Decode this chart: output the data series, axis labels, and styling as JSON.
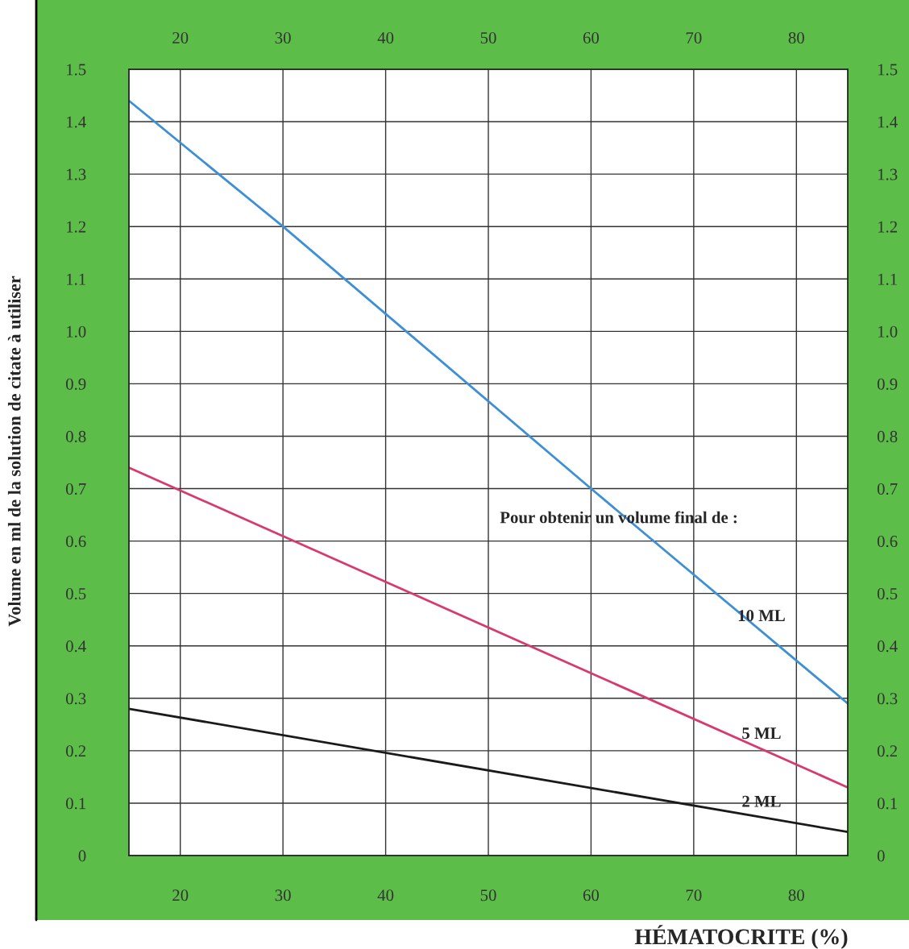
{
  "chart_data": {
    "type": "line",
    "xlabel": "HÉMATOCRITE (%)",
    "ylabel": "Volume en ml de la solution de citate à utiliser",
    "annotations": [
      "Pour obtenir un volume final de :"
    ],
    "xlim": [
      15,
      85
    ],
    "xticks": [
      20,
      30,
      40,
      50,
      60,
      70,
      80
    ],
    "x2lim": [
      15,
      85
    ],
    "x2ticks": [
      20,
      30,
      40,
      50,
      60,
      70,
      80
    ],
    "ylim": [
      0,
      1.5
    ],
    "yticks": [
      {
        "value": 0,
        "label": "0"
      },
      0.1,
      0.2,
      0.3,
      0.4,
      0.5,
      0.6,
      0.7,
      0.8,
      0.9,
      {
        "value": 1,
        "label": "1.0"
      },
      1.1,
      1.2,
      1.3,
      1.4,
      1.5
    ],
    "y2lim": [
      0,
      1.5
    ],
    "y2ticks": [
      {
        "value": 0,
        "label": "0"
      },
      0.1,
      0.2,
      0.3,
      0.4,
      0.5,
      0.6,
      0.7,
      0.8,
      0.9,
      {
        "value": 1,
        "label": "1.0"
      },
      1.1,
      1.2,
      1.3,
      1.4,
      1.5
    ],
    "grid": true,
    "line_style": "solid",
    "series": [
      {
        "name": "10 ML",
        "color": "#3d8fd8",
        "x": [
          15,
          30,
          60,
          85
        ],
        "values": [
          1.44,
          1.2,
          0.7,
          0.29
        ]
      },
      {
        "name": "5 ML",
        "color": "#d83a6e",
        "x": [
          15,
          85
        ],
        "values": [
          0.74,
          0.13
        ]
      },
      {
        "name": "2 ML",
        "color": "#1a1a1a",
        "x": [
          15,
          85
        ],
        "values": [
          0.28,
          0.045
        ]
      }
    ]
  }
}
